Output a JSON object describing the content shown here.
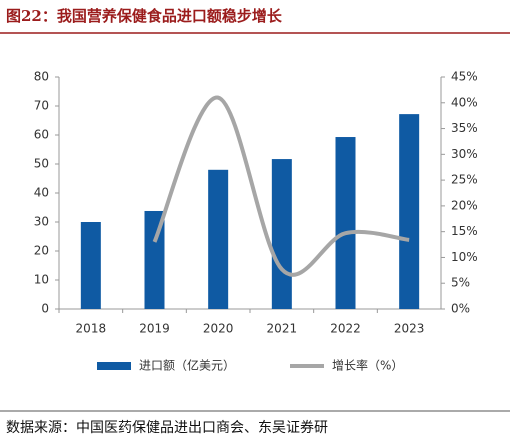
{
  "chart_data": {
    "type": "bar-line",
    "title": "图22：我国营养保健食品进口额稳步增长",
    "source": "数据来源：中国医药保健品进出口商会、东吴证券研",
    "categories": [
      "2018",
      "2019",
      "2020",
      "2021",
      "2022",
      "2023"
    ],
    "series": [
      {
        "name": "进口额（亿美元）",
        "type": "bar",
        "color": "#0f5aa3",
        "values": [
          30,
          33.8,
          48,
          51.7,
          59.3,
          67.2
        ]
      },
      {
        "name": "增长率（%）",
        "type": "line",
        "axis": "y2",
        "color": "#a6a6a6",
        "smooth": true,
        "values": [
          null,
          13,
          41,
          7.7,
          14.7,
          13.4
        ]
      }
    ],
    "ylim": [
      0,
      80
    ],
    "yticks": [
      0,
      10,
      20,
      30,
      40,
      50,
      60,
      70,
      80
    ],
    "y2lim": [
      0,
      45
    ],
    "y2ticks": [
      {
        "value": 0,
        "label": "0%"
      },
      {
        "value": 5,
        "label": "5%"
      },
      {
        "value": 10,
        "label": "10%"
      },
      {
        "value": 15,
        "label": "15%"
      },
      {
        "value": 20,
        "label": "20%"
      },
      {
        "value": 25,
        "label": "25%"
      },
      {
        "value": 30,
        "label": "30%"
      },
      {
        "value": 35,
        "label": "35%"
      },
      {
        "value": 40,
        "label": "40%"
      },
      {
        "value": 45,
        "label": "45%"
      }
    ],
    "legend": "bottom"
  }
}
